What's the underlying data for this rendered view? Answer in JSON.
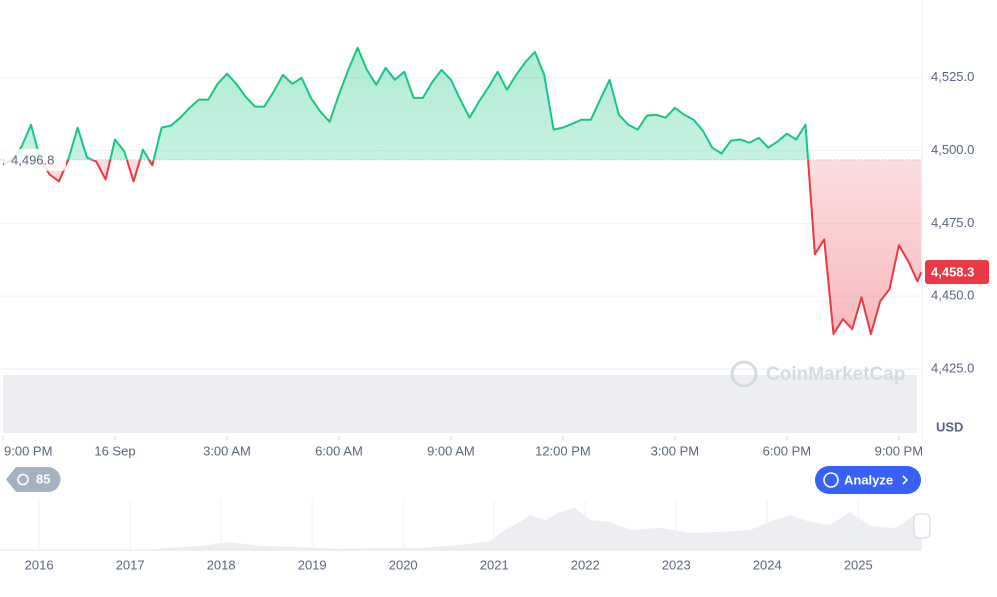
{
  "chart_data": [
    {
      "type": "line",
      "x": [
        0,
        0.25,
        0.5,
        0.75,
        1,
        1.25,
        1.5,
        1.75,
        2,
        2.25,
        2.5,
        2.75,
        3,
        3.25,
        3.5,
        3.75,
        4,
        4.25,
        4.5,
        4.75,
        5,
        5.25,
        5.5,
        5.75,
        6,
        6.25,
        6.5,
        6.75,
        7,
        7.25,
        7.5,
        7.75,
        8,
        8.25,
        8.5,
        8.75,
        9,
        9.25,
        9.5,
        9.75,
        10,
        10.25,
        10.5,
        10.75,
        11,
        11.25,
        11.5,
        11.75,
        12,
        12.25,
        12.5,
        12.75,
        13,
        13.25,
        13.5,
        13.75,
        14,
        14.25,
        14.5,
        14.75,
        15,
        15.25,
        15.5,
        15.75,
        16,
        16.25,
        16.5,
        16.75,
        17,
        17.25,
        17.5,
        17.75,
        18,
        18.25,
        18.5,
        18.75,
        19,
        19.25,
        19.5,
        19.75,
        20,
        20.25,
        20.5,
        20.75,
        21,
        21.25,
        21.5,
        21.75,
        22,
        22.25,
        22.5,
        22.75,
        23,
        23.25,
        23.5,
        23.75,
        24,
        24.25,
        24.5,
        24.6
      ],
      "series": [
        {
          "name": "Price",
          "values": [
            4495.2,
            4496.9,
            4501.4,
            4508.9,
            4496.9,
            4491.8,
            4489.4,
            4496.9,
            4507.9,
            4497.6,
            4496.2,
            4490.1,
            4503.8,
            4499.7,
            4489.4,
            4500.3,
            4494.9,
            4507.9,
            4508.6,
            4511.3,
            4514.7,
            4517.5,
            4517.5,
            4522.9,
            4526.4,
            4522.9,
            4518.5,
            4515.1,
            4515.1,
            4520.2,
            4526.0,
            4522.9,
            4525.0,
            4518.1,
            4513.4,
            4509.9,
            4519.2,
            4527.7,
            4535.3,
            4527.7,
            4522.6,
            4528.4,
            4524.3,
            4527.1,
            4518.1,
            4518.1,
            4523.6,
            4527.7,
            4524.3,
            4517.5,
            4511.3,
            4516.8,
            4521.6,
            4527.1,
            4520.9,
            4526.0,
            4530.5,
            4533.9,
            4526.0,
            4507.2,
            4507.9,
            4509.2,
            4510.6,
            4510.6,
            4517.5,
            4524.3,
            4512.3,
            4508.9,
            4507.2,
            4512.0,
            4512.3,
            4511.3,
            4514.7,
            4512.3,
            4510.6,
            4506.8,
            4501.0,
            4499.0,
            4503.4,
            4503.8,
            4502.7,
            4504.4,
            4501.0,
            4503.1,
            4505.8,
            4503.8,
            4508.9,
            4464.4,
            4469.5,
            4437.0,
            4442.1,
            4438.7,
            4449.6,
            4437.0,
            4448.3,
            4452.4,
            4467.5,
            4462.0,
            4455.1,
            4458.3
          ]
        }
      ],
      "up_color": "#16c784",
      "down_color": "#ea3943",
      "baseline": {
        "value": 4496.8,
        "label": "4,496.8"
      },
      "price_label": {
        "value": 4458.3,
        "label": "4,458.3"
      },
      "xlim": [
        -0.08,
        24.62
      ],
      "xticks": [
        {
          "value": 0,
          "label": "9:00 PM"
        },
        {
          "value": 3,
          "label": "16 Sep"
        },
        {
          "value": 6,
          "label": "3:00 AM"
        },
        {
          "value": 9,
          "label": "6:00 AM"
        },
        {
          "value": 12,
          "label": "9:00 AM"
        },
        {
          "value": 15,
          "label": "12:00 PM"
        },
        {
          "value": 18,
          "label": "3:00 PM"
        },
        {
          "value": 21,
          "label": "6:00 PM"
        },
        {
          "value": 24,
          "label": "9:00 PM"
        }
      ],
      "ylim": [
        4403,
        4550
      ],
      "yticks": [
        {
          "value": 4425,
          "label": "4,425.0"
        },
        {
          "value": 4450,
          "label": "4,450.0"
        },
        {
          "value": 4475,
          "label": "4,475.0"
        },
        {
          "value": 4500,
          "label": "4,500.0"
        },
        {
          "value": 4525,
          "label": "4,525.0"
        }
      ],
      "y_unit": "USD",
      "grid": true,
      "watermark": "CoinMarketCap"
    },
    {
      "type": "navigator",
      "xlim": [
        2015.57,
        2025.7
      ],
      "xticks": [
        2016,
        2017,
        2018,
        2019,
        2020,
        2021,
        2022,
        2023,
        2024,
        2025
      ]
    }
  ],
  "controls": {
    "history_badge": 85,
    "analyze_button": "Analyze"
  }
}
